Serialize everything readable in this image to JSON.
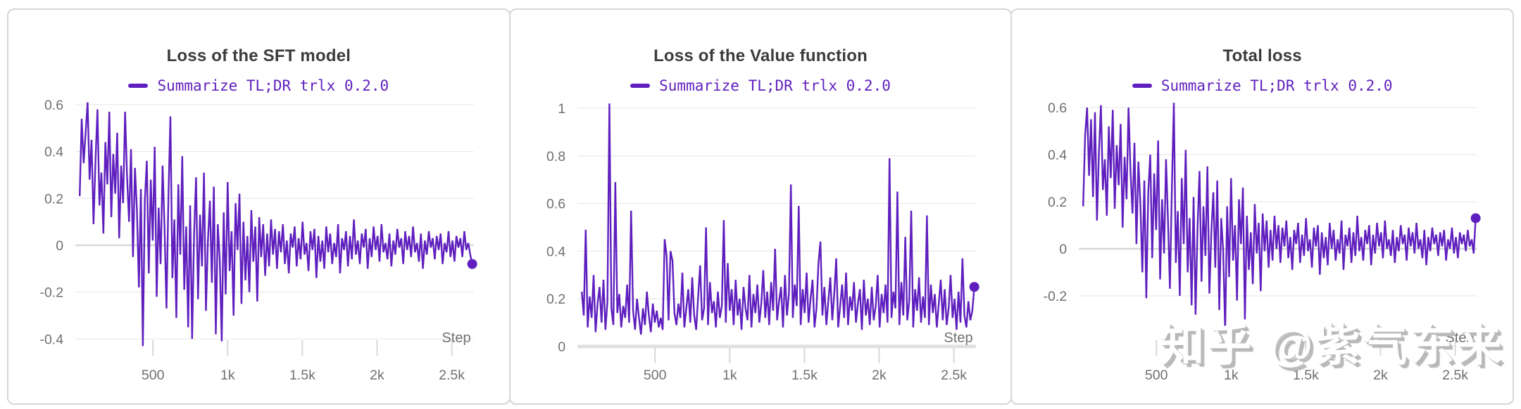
{
  "watermark": {
    "text": "知乎 @紫气东来"
  },
  "colors": {
    "accent": "#5f1fbe",
    "title_text": "#3b3b3b",
    "axis_text": "#6f6f6f",
    "grid_line": "#eaeaea",
    "zero_line": "#d8d8d8",
    "card_border": "#d6d6d6",
    "watermark_shadow": "#b9b9b9"
  },
  "chart_data": [
    {
      "type": "line",
      "title": "Loss of the SFT model",
      "legend": "Summarize TL;DR trlx 0.2.0",
      "xlabel": "Step",
      "x_tick_values": [
        500,
        1000,
        1500,
        2000,
        2500
      ],
      "x_tick_labels": [
        "500",
        "1k",
        "1.5k",
        "2k",
        "2.5k"
      ],
      "y_tick_values": [
        0.6,
        0.4,
        0.2,
        0,
        -0.2,
        -0.4
      ],
      "y_tick_labels": [
        "0.6",
        "0.4",
        "0.2",
        "0",
        "-0.2",
        "-0.4"
      ],
      "xlim": [
        0,
        2700
      ],
      "ylim": [
        -0.45,
        0.65
      ],
      "x_start": 10,
      "x_step": 13.2,
      "end_marker_value": -0.08,
      "values": [
        0.21,
        0.54,
        0.35,
        0.48,
        0.61,
        0.28,
        0.45,
        0.09,
        0.36,
        0.58,
        0.17,
        0.31,
        0.05,
        0.44,
        0.26,
        0.57,
        0.12,
        0.39,
        0.22,
        0.48,
        0.03,
        0.34,
        0.18,
        0.57,
        0.29,
        0.1,
        0.41,
        -0.05,
        0.33,
        0.15,
        -0.18,
        0.24,
        -0.43,
        0.19,
        0.36,
        -0.12,
        0.28,
        0.02,
        0.42,
        -0.22,
        0.16,
        -0.08,
        0.34,
        0.07,
        -0.27,
        0.21,
        0.55,
        -0.14,
        0.11,
        -0.31,
        0.26,
        -0.04,
        0.38,
        -0.19,
        0.08,
        -0.35,
        0.17,
        -0.4,
        0.05,
        0.29,
        -0.23,
        0.13,
        -0.09,
        0.31,
        -0.28,
        0.02,
        0.19,
        -0.16,
        0.25,
        -0.38,
        0.09,
        -0.06,
        -0.41,
        0.14,
        -0.21,
        0.27,
        -0.11,
        0.06,
        -0.3,
        0.18,
        -0.02,
        0.22,
        -0.25,
        0.1,
        -0.15,
        0.04,
        -0.2,
        0.15,
        -0.07,
        0.08,
        -0.24,
        0.12,
        -0.05,
        0.09,
        -0.13,
        0.05,
        -0.09,
        0.11,
        -0.04,
        0.07,
        -0.1,
        0.06,
        -0.03,
        0.09,
        -0.08,
        0.02,
        -0.12,
        0.05,
        -0.01,
        0.08,
        -0.09,
        0.03,
        -0.06,
        0.1,
        -0.04,
        0.01,
        -0.11,
        0.06,
        -0.02,
        0.07,
        -0.14,
        0.04,
        -0.07,
        0.02,
        -0.1,
        0.08,
        -0.03,
        0.05,
        -0.08,
        0.01,
        -0.05,
        0.09,
        -0.12,
        0.03,
        -0.02,
        0.06,
        -0.09,
        0.04,
        -0.06,
        0.11,
        -0.04,
        0.02,
        -0.08,
        0.05,
        -0.01,
        0.07,
        -0.1,
        0.03,
        -0.05,
        0.08,
        -0.02,
        0.04,
        -0.07,
        0.09,
        -0.03,
        0.01,
        -0.06,
        0.05,
        -0.09,
        0.02,
        -0.04,
        0.07,
        -0.01,
        0.03,
        -0.08,
        0.06,
        -0.02,
        0.04,
        -0.05,
        0.08,
        -0.03,
        0.01,
        -0.07,
        0.05,
        -0.1,
        0.02,
        -0.04,
        0.06,
        -0.01,
        0.03,
        -0.06,
        0.04,
        -0.02,
        0.05,
        -0.08,
        0.01,
        -0.03,
        0.06,
        -0.05,
        0.02,
        -0.07,
        0.04,
        -0.01,
        0.03,
        -0.05,
        0.06,
        -0.02,
        0.01,
        -0.04,
        -0.08
      ]
    },
    {
      "type": "line",
      "title": "Loss of the Value function",
      "legend": "Summarize TL;DR trlx 0.2.0",
      "xlabel": "Step",
      "x_tick_values": [
        500,
        1000,
        1500,
        2000,
        2500
      ],
      "x_tick_labels": [
        "500",
        "1k",
        "1.5k",
        "2k",
        "2.5k"
      ],
      "y_tick_values": [
        1,
        0.8,
        0.6,
        0.4,
        0.2,
        0
      ],
      "y_tick_labels": [
        "1",
        "0.8",
        "0.6",
        "0.4",
        "0.2",
        "0"
      ],
      "xlim": [
        0,
        2700
      ],
      "ylim": [
        0,
        1.05
      ],
      "x_start": 10,
      "x_step": 13.2,
      "end_marker_value": 0.25,
      "values": [
        0.23,
        0.13,
        0.49,
        0.08,
        0.21,
        0.12,
        0.3,
        0.06,
        0.18,
        0.25,
        0.1,
        0.28,
        0.07,
        0.19,
        1.02,
        0.16,
        0.09,
        0.69,
        0.14,
        0.22,
        0.08,
        0.17,
        0.12,
        0.26,
        0.1,
        0.57,
        0.15,
        0.07,
        0.2,
        0.12,
        0.05,
        0.16,
        0.09,
        0.23,
        0.13,
        0.06,
        0.18,
        0.1,
        0.15,
        0.08,
        0.12,
        0.07,
        0.45,
        0.38,
        0.11,
        0.4,
        0.36,
        0.14,
        0.09,
        0.18,
        0.12,
        0.31,
        0.08,
        0.16,
        0.24,
        0.1,
        0.29,
        0.13,
        0.07,
        0.21,
        0.34,
        0.11,
        0.16,
        0.5,
        0.09,
        0.27,
        0.14,
        0.19,
        0.08,
        0.23,
        0.12,
        0.17,
        0.53,
        0.1,
        0.35,
        0.15,
        0.24,
        0.09,
        0.28,
        0.13,
        0.2,
        0.07,
        0.25,
        0.16,
        0.11,
        0.3,
        0.08,
        0.22,
        0.14,
        0.26,
        0.1,
        0.18,
        0.32,
        0.12,
        0.23,
        0.09,
        0.27,
        0.15,
        0.41,
        0.11,
        0.19,
        0.25,
        0.08,
        0.3,
        0.13,
        0.22,
        0.68,
        0.12,
        0.26,
        0.17,
        0.59,
        0.09,
        0.24,
        0.14,
        0.31,
        0.1,
        0.2,
        0.28,
        0.08,
        0.16,
        0.35,
        0.44,
        0.13,
        0.25,
        0.09,
        0.19,
        0.29,
        0.11,
        0.22,
        0.37,
        0.08,
        0.17,
        0.26,
        0.12,
        0.31,
        0.09,
        0.21,
        0.15,
        0.27,
        0.1,
        0.18,
        0.24,
        0.07,
        0.28,
        0.13,
        0.2,
        0.09,
        0.25,
        0.11,
        0.17,
        0.3,
        0.08,
        0.22,
        0.14,
        0.26,
        0.1,
        0.79,
        0.12,
        0.23,
        0.16,
        0.65,
        0.09,
        0.27,
        0.13,
        0.46,
        0.11,
        0.19,
        0.57,
        0.08,
        0.24,
        0.15,
        0.29,
        0.1,
        0.21,
        0.12,
        0.55,
        0.09,
        0.26,
        0.14,
        0.22,
        0.08,
        0.18,
        0.28,
        0.11,
        0.24,
        0.09,
        0.16,
        0.3,
        0.12,
        0.2,
        0.07,
        0.23,
        0.1,
        0.37,
        0.13,
        0.08,
        0.19,
        0.11,
        0.15,
        0.25
      ]
    },
    {
      "type": "line",
      "title": "Total loss",
      "legend": "Summarize TL;DR trlx 0.2.0",
      "xlabel": "Step",
      "x_tick_values": [
        500,
        1000,
        1500,
        2000,
        2500
      ],
      "x_tick_labels": [
        "500",
        "1k",
        "1.5k",
        "2k",
        "2.5k"
      ],
      "y_tick_values": [
        0.6,
        0.4,
        0.2,
        0,
        -0.2
      ],
      "y_tick_labels": [
        "0.6",
        "0.4",
        "0.2",
        "0",
        "-0.2"
      ],
      "xlim": [
        0,
        2700
      ],
      "ylim": [
        -0.38,
        0.65
      ],
      "x_start": 10,
      "x_step": 13.2,
      "end_marker_value": 0.13,
      "values": [
        0.18,
        0.48,
        0.6,
        0.31,
        0.55,
        0.22,
        0.58,
        0.12,
        0.41,
        0.61,
        0.25,
        0.38,
        0.14,
        0.52,
        0.3,
        0.59,
        0.17,
        0.44,
        0.27,
        0.53,
        0.09,
        0.39,
        0.21,
        0.6,
        0.33,
        0.15,
        0.45,
        0.02,
        0.37,
        0.19,
        -0.1,
        0.29,
        -0.21,
        0.24,
        0.4,
        -0.04,
        0.32,
        0.08,
        0.46,
        -0.13,
        0.21,
        -0.02,
        0.38,
        0.12,
        -0.17,
        0.26,
        0.62,
        -0.06,
        0.16,
        -0.2,
        0.3,
        0.02,
        0.42,
        -0.1,
        0.13,
        -0.24,
        0.22,
        -0.28,
        0.09,
        0.33,
        -0.14,
        0.18,
        -0.03,
        0.35,
        -0.19,
        0.07,
        0.24,
        -0.08,
        0.29,
        -0.26,
        0.13,
        -0.01,
        -0.35,
        0.18,
        -0.12,
        0.3,
        -0.05,
        0.1,
        -0.22,
        0.21,
        0.02,
        0.26,
        -0.3,
        0.14,
        -0.09,
        0.07,
        -0.15,
        0.19,
        -0.02,
        0.11,
        -0.18,
        0.15,
        -0.01,
        0.12,
        -0.08,
        0.08,
        -0.05,
        0.14,
        0.0,
        0.1,
        -0.06,
        0.09,
        0.01,
        0.12,
        -0.04,
        0.05,
        -0.09,
        0.08,
        0.02,
        0.11,
        -0.06,
        0.06,
        -0.03,
        0.13,
        -0.01,
        0.04,
        -0.08,
        0.09,
        0.01,
        0.1,
        -0.11,
        0.07,
        -0.04,
        0.05,
        -0.07,
        0.11,
        0.0,
        0.08,
        -0.05,
        0.04,
        -0.02,
        0.12,
        -0.09,
        0.06,
        0.01,
        0.09,
        -0.06,
        0.07,
        -0.03,
        0.14,
        -0.01,
        0.05,
        -0.05,
        0.08,
        0.02,
        0.1,
        -0.07,
        0.06,
        -0.02,
        0.11,
        0.01,
        0.07,
        -0.04,
        0.12,
        0.0,
        0.04,
        -0.03,
        0.08,
        -0.06,
        0.05,
        -0.01,
        0.1,
        0.02,
        0.06,
        -0.05,
        0.09,
        0.01,
        0.07,
        -0.02,
        0.11,
        0.0,
        0.04,
        -0.04,
        0.08,
        -0.07,
        0.05,
        -0.01,
        0.09,
        0.02,
        0.06,
        -0.03,
        0.07,
        0.01,
        0.08,
        -0.05,
        0.04,
        0.0,
        0.09,
        -0.02,
        0.05,
        -0.04,
        0.07,
        0.02,
        0.06,
        -0.01,
        0.08,
        0.01,
        0.04,
        -0.02,
        0.13
      ]
    }
  ]
}
